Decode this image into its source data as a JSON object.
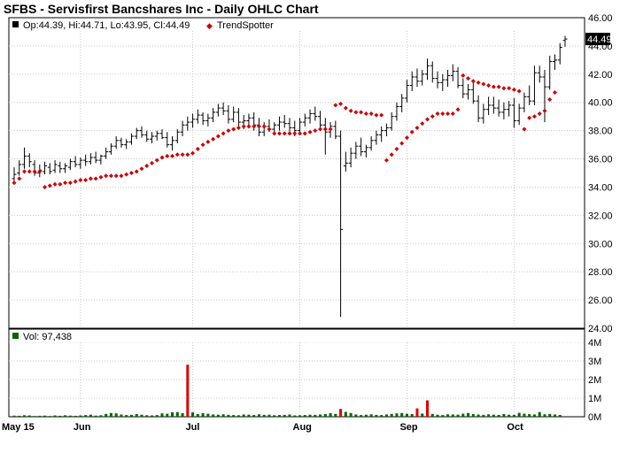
{
  "title": "SFBS - Servisfirst Bancshares Inc - Daily OHLC Chart",
  "legend": {
    "ohlc": "Op:44.39, Hi:44.71, Lo:43.95, Cl:44.49",
    "trendspotter": "TrendSpotter",
    "volume": "Vol: 97,438",
    "ohlc_color": "#000000",
    "trend_color": "#cc0000",
    "volume_color": "#006600"
  },
  "last_price_label": "44.49",
  "chart_data": [
    {
      "type": "ohlc",
      "ylim": [
        24,
        46
      ],
      "yticks": [
        "24.00",
        "26.00",
        "28.00",
        "30.00",
        "32.00",
        "34.00",
        "36.00",
        "38.00",
        "40.00",
        "42.00",
        "44.00",
        "46.00"
      ],
      "xticks": [
        "May 15",
        "Jun",
        "Jul",
        "Aug",
        "Sep",
        "Oct"
      ],
      "xtick_index": [
        0,
        13,
        35,
        56,
        77,
        98
      ],
      "grid": true,
      "legend_position": "top-left",
      "last_close": 44.49,
      "ohlc": [
        [
          34.6,
          35.4,
          34.2,
          34.9
        ],
        [
          35.0,
          35.9,
          34.8,
          35.6
        ],
        [
          35.6,
          36.8,
          35.3,
          36.2
        ],
        [
          36.2,
          36.4,
          35.4,
          35.8
        ],
        [
          35.6,
          35.9,
          34.8,
          35.0
        ],
        [
          35.0,
          35.6,
          34.7,
          35.2
        ],
        [
          35.1,
          35.8,
          34.9,
          35.5
        ],
        [
          35.4,
          35.7,
          34.9,
          35.1
        ],
        [
          35.2,
          35.9,
          35.0,
          35.6
        ],
        [
          35.5,
          35.8,
          35.0,
          35.3
        ],
        [
          35.3,
          35.7,
          35.0,
          35.5
        ],
        [
          35.4,
          36.0,
          35.2,
          35.8
        ],
        [
          35.8,
          36.2,
          35.4,
          35.6
        ],
        [
          35.6,
          36.1,
          35.3,
          35.9
        ],
        [
          35.9,
          36.3,
          35.5,
          35.8
        ],
        [
          35.8,
          36.4,
          35.6,
          36.1
        ],
        [
          36.1,
          36.5,
          35.7,
          35.9
        ],
        [
          35.9,
          36.3,
          35.6,
          36.2
        ],
        [
          36.2,
          36.8,
          36.0,
          36.5
        ],
        [
          36.5,
          37.1,
          36.3,
          36.9
        ],
        [
          36.9,
          37.6,
          36.7,
          37.3
        ],
        [
          37.3,
          37.5,
          36.8,
          37.0
        ],
        [
          37.0,
          37.4,
          36.7,
          37.2
        ],
        [
          37.2,
          37.8,
          37.0,
          37.6
        ],
        [
          37.6,
          38.2,
          37.4,
          38.0
        ],
        [
          38.0,
          38.3,
          37.5,
          37.7
        ],
        [
          37.7,
          38.0,
          37.2,
          37.4
        ],
        [
          37.4,
          37.9,
          37.1,
          37.6
        ],
        [
          37.6,
          38.0,
          37.3,
          37.8
        ],
        [
          37.8,
          38.1,
          37.4,
          37.5
        ],
        [
          37.5,
          37.9,
          36.8,
          37.0
        ],
        [
          37.0,
          37.6,
          36.6,
          37.3
        ],
        [
          37.3,
          38.1,
          37.1,
          37.9
        ],
        [
          37.9,
          38.7,
          37.6,
          38.4
        ],
        [
          38.4,
          39.0,
          38.0,
          38.6
        ],
        [
          38.6,
          39.2,
          38.2,
          38.8
        ],
        [
          38.8,
          39.5,
          38.5,
          39.1
        ],
        [
          39.1,
          39.3,
          38.4,
          38.7
        ],
        [
          38.7,
          39.2,
          38.3,
          38.9
        ],
        [
          38.9,
          39.6,
          38.6,
          39.3
        ],
        [
          39.3,
          39.9,
          39.0,
          39.6
        ],
        [
          39.6,
          40.0,
          39.1,
          39.4
        ],
        [
          39.4,
          39.8,
          38.5,
          38.8
        ],
        [
          38.8,
          39.7,
          38.6,
          39.3
        ],
        [
          39.3,
          39.6,
          38.2,
          38.6
        ],
        [
          38.6,
          39.1,
          38.1,
          38.7
        ],
        [
          38.7,
          39.2,
          38.3,
          38.9
        ],
        [
          38.9,
          39.3,
          38.0,
          38.4
        ],
        [
          38.4,
          38.9,
          37.6,
          37.9
        ],
        [
          37.9,
          38.6,
          37.6,
          38.3
        ],
        [
          38.3,
          38.8,
          37.9,
          38.1
        ],
        [
          38.1,
          38.6,
          37.7,
          38.4
        ],
        [
          38.4,
          39.0,
          38.0,
          38.6
        ],
        [
          38.6,
          39.1,
          38.2,
          38.5
        ],
        [
          38.5,
          38.9,
          37.9,
          38.2
        ],
        [
          38.2,
          38.7,
          37.6,
          38.0
        ],
        [
          38.0,
          38.9,
          37.7,
          38.6
        ],
        [
          38.6,
          39.2,
          38.3,
          38.9
        ],
        [
          38.9,
          39.5,
          38.5,
          39.2
        ],
        [
          39.2,
          39.7,
          38.7,
          39.0
        ],
        [
          39.0,
          39.4,
          38.1,
          38.4
        ],
        [
          38.4,
          38.9,
          36.3,
          37.9
        ],
        [
          37.9,
          38.6,
          37.5,
          38.3
        ],
        [
          38.3,
          38.7,
          37.4,
          37.6
        ],
        [
          37.6,
          38.0,
          24.8,
          31.0
        ],
        [
          35.5,
          36.5,
          35.1,
          35.7
        ],
        [
          35.7,
          36.8,
          35.4,
          36.4
        ],
        [
          36.4,
          37.2,
          36.0,
          36.9
        ],
        [
          36.9,
          37.5,
          36.2,
          36.5
        ],
        [
          36.5,
          37.0,
          36.1,
          36.8
        ],
        [
          36.8,
          37.6,
          36.6,
          37.3
        ],
        [
          37.3,
          38.0,
          37.0,
          37.7
        ],
        [
          37.7,
          38.3,
          37.2,
          38.0
        ],
        [
          38.0,
          38.5,
          37.6,
          38.2
        ],
        [
          38.2,
          39.3,
          38.0,
          39.0
        ],
        [
          39.0,
          40.0,
          38.7,
          39.7
        ],
        [
          39.7,
          40.6,
          39.3,
          40.3
        ],
        [
          40.3,
          41.6,
          40.0,
          41.2
        ],
        [
          41.2,
          42.2,
          40.8,
          41.8
        ],
        [
          41.8,
          42.4,
          41.1,
          41.5
        ],
        [
          41.5,
          42.3,
          41.2,
          42.0
        ],
        [
          42.0,
          43.1,
          41.6,
          42.6
        ],
        [
          42.6,
          42.9,
          41.4,
          41.7
        ],
        [
          41.7,
          42.2,
          41.0,
          41.4
        ],
        [
          41.4,
          42.0,
          40.8,
          41.6
        ],
        [
          41.6,
          42.3,
          41.1,
          41.9
        ],
        [
          41.9,
          42.7,
          41.5,
          42.2
        ],
        [
          42.2,
          42.5,
          41.0,
          41.2
        ],
        [
          41.2,
          41.7,
          40.3,
          40.6
        ],
        [
          40.6,
          41.3,
          40.2,
          40.9
        ],
        [
          40.9,
          41.4,
          39.9,
          40.1
        ],
        [
          40.1,
          40.5,
          38.6,
          38.9
        ],
        [
          38.9,
          39.9,
          38.5,
          39.5
        ],
        [
          39.5,
          40.4,
          39.1,
          39.8
        ],
        [
          39.8,
          40.4,
          39.2,
          39.6
        ],
        [
          39.6,
          40.2,
          39.0,
          39.3
        ],
        [
          39.3,
          40.0,
          38.8,
          39.5
        ],
        [
          39.5,
          40.1,
          39.0,
          39.8
        ],
        [
          39.8,
          40.3,
          38.2,
          38.7
        ],
        [
          38.7,
          39.9,
          38.4,
          39.6
        ],
        [
          39.6,
          40.7,
          39.3,
          40.4
        ],
        [
          40.4,
          41.2,
          39.8,
          40.1
        ],
        [
          40.1,
          42.6,
          39.8,
          42.1
        ],
        [
          42.1,
          42.6,
          41.4,
          41.8
        ],
        [
          41.8,
          42.3,
          38.6,
          41.1
        ],
        [
          41.1,
          43.3,
          40.9,
          42.9
        ],
        [
          42.9,
          43.4,
          42.3,
          43.0
        ],
        [
          43.0,
          44.2,
          42.7,
          43.9
        ],
        [
          44.39,
          44.71,
          43.95,
          44.49
        ]
      ],
      "trendspotter": [
        [
          0,
          34.3
        ],
        [
          1,
          34.6
        ],
        [
          2,
          35.1
        ],
        [
          3,
          35.1
        ],
        [
          4,
          35.1
        ],
        [
          5,
          35.1
        ],
        [
          6,
          34.0
        ],
        [
          7,
          34.1
        ],
        [
          8,
          34.2
        ],
        [
          9,
          34.2
        ],
        [
          10,
          34.3
        ],
        [
          11,
          34.3
        ],
        [
          12,
          34.4
        ],
        [
          13,
          34.5
        ],
        [
          14,
          34.5
        ],
        [
          15,
          34.6
        ],
        [
          16,
          34.6
        ],
        [
          17,
          34.7
        ],
        [
          18,
          34.8
        ],
        [
          19,
          34.8
        ],
        [
          20,
          34.8
        ],
        [
          21,
          34.8
        ],
        [
          22,
          34.9
        ],
        [
          23,
          35.0
        ],
        [
          24,
          35.1
        ],
        [
          25,
          35.3
        ],
        [
          26,
          35.5
        ],
        [
          27,
          35.7
        ],
        [
          28,
          35.9
        ],
        [
          29,
          36.1
        ],
        [
          30,
          36.2
        ],
        [
          31,
          36.2
        ],
        [
          32,
          36.3
        ],
        [
          33,
          36.3
        ],
        [
          34,
          36.3
        ],
        [
          35,
          36.4
        ],
        [
          36,
          36.7
        ],
        [
          37,
          37.0
        ],
        [
          38,
          37.2
        ],
        [
          39,
          37.4
        ],
        [
          40,
          37.6
        ],
        [
          41,
          37.8
        ],
        [
          42,
          38.0
        ],
        [
          43,
          38.1
        ],
        [
          44,
          38.2
        ],
        [
          45,
          38.3
        ],
        [
          46,
          38.3
        ],
        [
          47,
          38.3
        ],
        [
          48,
          38.3
        ],
        [
          49,
          38.3
        ],
        [
          50,
          38.1
        ],
        [
          51,
          37.8
        ],
        [
          52,
          37.8
        ],
        [
          53,
          37.8
        ],
        [
          54,
          37.8
        ],
        [
          55,
          37.8
        ],
        [
          56,
          37.8
        ],
        [
          57,
          37.8
        ],
        [
          58,
          37.9
        ],
        [
          59,
          38.0
        ],
        [
          60,
          38.1
        ],
        [
          61,
          38.1
        ],
        [
          62,
          38.1
        ],
        [
          63,
          39.8
        ],
        [
          64,
          39.9
        ],
        [
          65,
          39.6
        ],
        [
          66,
          39.4
        ],
        [
          67,
          39.3
        ],
        [
          68,
          39.3
        ],
        [
          69,
          39.2
        ],
        [
          70,
          39.2
        ],
        [
          71,
          39.1
        ],
        [
          72,
          39.1
        ],
        [
          73,
          35.9
        ],
        [
          74,
          36.3
        ],
        [
          75,
          36.7
        ],
        [
          76,
          37.1
        ],
        [
          77,
          37.5
        ],
        [
          78,
          37.9
        ],
        [
          79,
          38.2
        ],
        [
          80,
          38.5
        ],
        [
          81,
          38.8
        ],
        [
          82,
          39.0
        ],
        [
          83,
          39.2
        ],
        [
          84,
          39.2
        ],
        [
          85,
          39.2
        ],
        [
          86,
          39.2
        ],
        [
          87,
          39.5
        ],
        [
          88,
          41.9
        ],
        [
          89,
          41.7
        ],
        [
          90,
          41.5
        ],
        [
          91,
          41.4
        ],
        [
          92,
          41.3
        ],
        [
          93,
          41.2
        ],
        [
          94,
          41.1
        ],
        [
          95,
          41.1
        ],
        [
          96,
          41.0
        ],
        [
          97,
          41.0
        ],
        [
          98,
          40.9
        ],
        [
          99,
          40.8
        ],
        [
          100,
          38.1
        ],
        [
          101,
          38.9
        ],
        [
          102,
          39.0
        ],
        [
          103,
          39.2
        ],
        [
          104,
          39.4
        ],
        [
          105,
          40.2
        ],
        [
          106,
          40.7
        ]
      ]
    },
    {
      "type": "bar",
      "name": "volume",
      "ylim": [
        0,
        4000000
      ],
      "yticks": [
        "0M",
        "1M",
        "2M",
        "3M",
        "4M"
      ],
      "volume": [
        60000,
        50000,
        80000,
        70000,
        40000,
        50000,
        60000,
        40000,
        70000,
        50000,
        80000,
        60000,
        50000,
        70000,
        90000,
        110000,
        60000,
        80000,
        150000,
        200000,
        180000,
        120000,
        90000,
        100000,
        140000,
        110000,
        80000,
        70000,
        90000,
        180000,
        160000,
        240000,
        250000,
        190000,
        2800000,
        230000,
        140000,
        190000,
        160000,
        120000,
        110000,
        130000,
        100000,
        90000,
        80000,
        120000,
        110000,
        90000,
        130000,
        100000,
        110000,
        80000,
        90000,
        100000,
        120000,
        70000,
        80000,
        90000,
        110000,
        100000,
        120000,
        140000,
        190000,
        150000,
        420000,
        260000,
        200000,
        120000,
        90000,
        110000,
        130000,
        100000,
        90000,
        120000,
        150000,
        180000,
        200000,
        160000,
        140000,
        450000,
        170000,
        880000,
        150000,
        110000,
        90000,
        130000,
        120000,
        110000,
        160000,
        200000,
        140000,
        120000,
        100000,
        130000,
        110000,
        100000,
        140000,
        110000,
        100000,
        210000,
        160000,
        140000,
        120000,
        250000,
        130000,
        150000,
        120000,
        97438
      ]
    }
  ]
}
